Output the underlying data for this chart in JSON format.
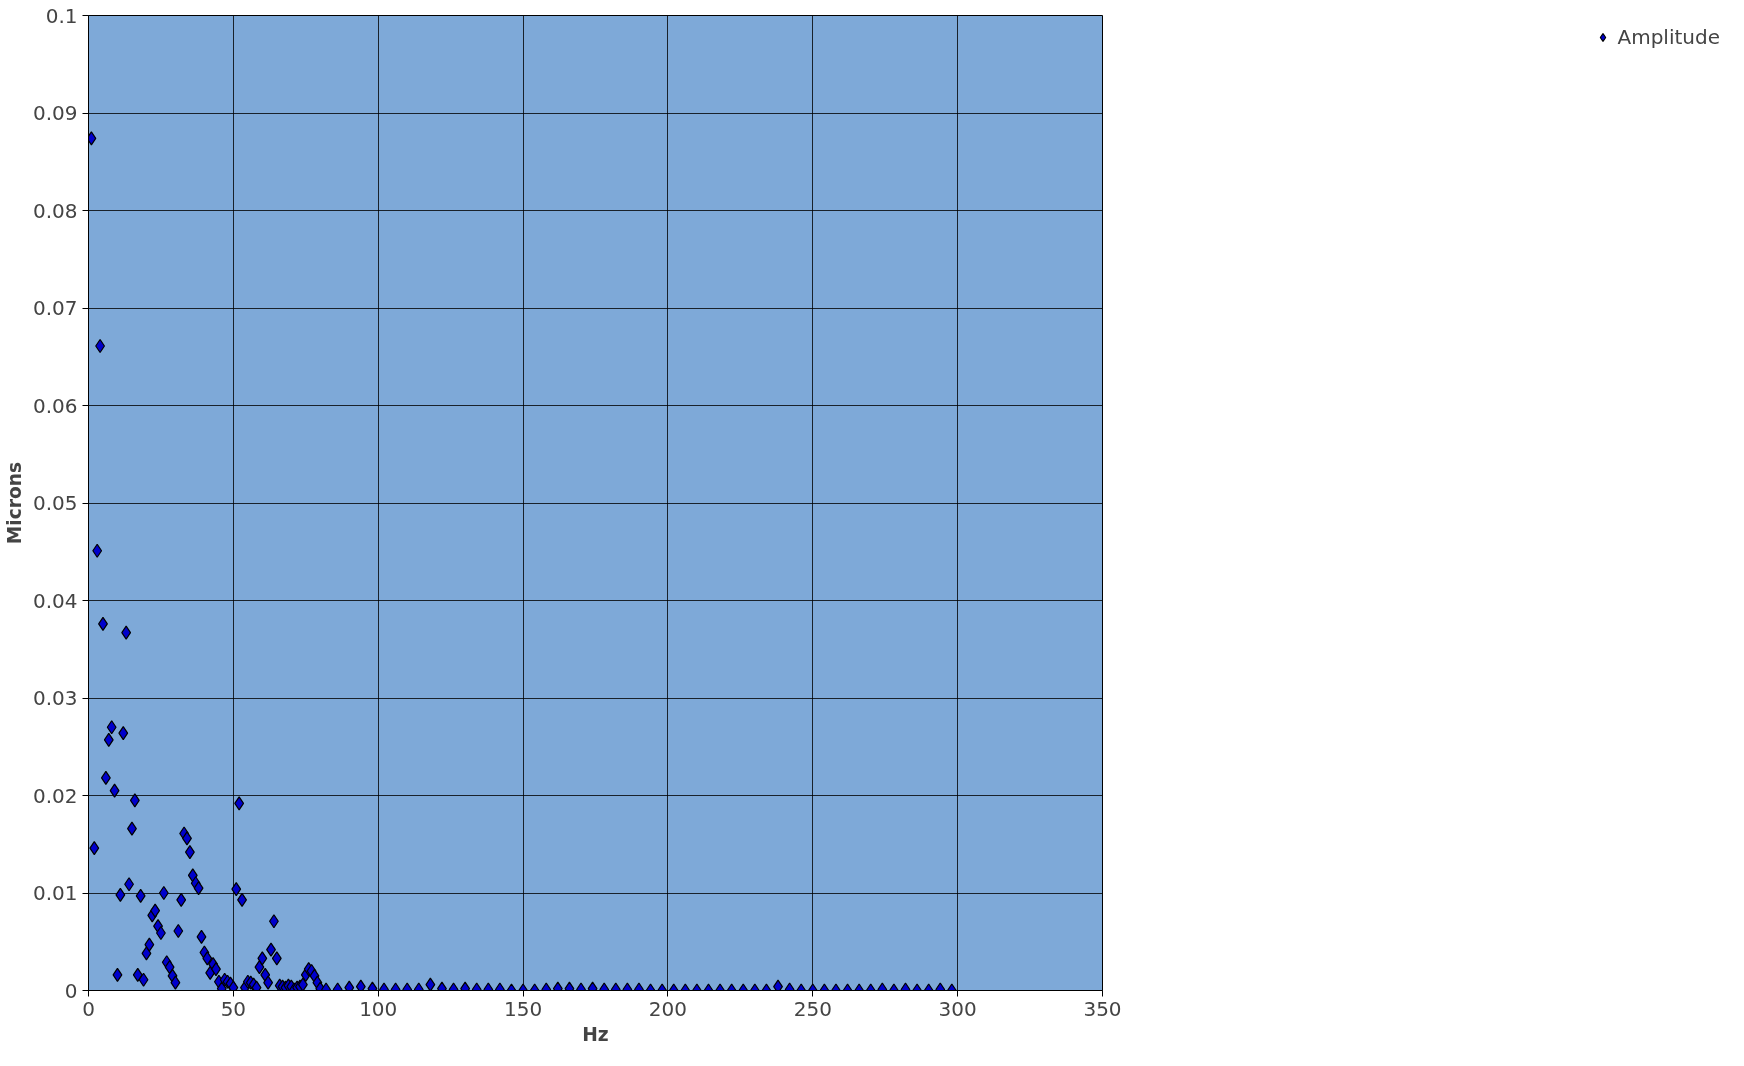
{
  "chart_data": {
    "type": "scatter",
    "xlabel": "Hz",
    "ylabel": "Microns",
    "xlim": [
      0,
      350
    ],
    "xticks": [
      0,
      50,
      100,
      150,
      200,
      250,
      300,
      350
    ],
    "ylim": [
      0,
      0.1
    ],
    "yticks": [
      0,
      0.01,
      0.02,
      0.03,
      0.04,
      0.05,
      0.06,
      0.07,
      0.08,
      0.09,
      0.1
    ],
    "grid": true,
    "legend": "right",
    "marker": "diamond",
    "series": [
      {
        "name": "Amplitude",
        "color": "#0000cc",
        "x": [
          1,
          2,
          3,
          4,
          5,
          6,
          7,
          8,
          9,
          10,
          11,
          12,
          13,
          14,
          15,
          16,
          17,
          18,
          19,
          20,
          21,
          22,
          23,
          24,
          25,
          26,
          27,
          28,
          29,
          30,
          31,
          32,
          33,
          34,
          35,
          36,
          37,
          38,
          39,
          40,
          41,
          42,
          43,
          44,
          45,
          46,
          47,
          48,
          49,
          50,
          51,
          52,
          53,
          54,
          55,
          56,
          57,
          58,
          59,
          60,
          61,
          62,
          63,
          64,
          65,
          66,
          67,
          68,
          69,
          70,
          71,
          72,
          73,
          74,
          75,
          76,
          77,
          78,
          79,
          80,
          82,
          86,
          90,
          94,
          98,
          102,
          106,
          110,
          114,
          118,
          122,
          126,
          130,
          134,
          138,
          142,
          146,
          150,
          154,
          158,
          162,
          166,
          170,
          174,
          178,
          182,
          186,
          190,
          194,
          198,
          202,
          206,
          210,
          214,
          218,
          222,
          226,
          230,
          234,
          238,
          242,
          246,
          250,
          254,
          258,
          262,
          266,
          270,
          274,
          278,
          282,
          286,
          290,
          294,
          298
        ],
        "values": [
          0.0874,
          0.0146,
          0.0451,
          0.0661,
          0.0376,
          0.0218,
          0.0257,
          0.027,
          0.0205,
          0.0016,
          0.0098,
          0.0264,
          0.0367,
          0.0109,
          0.0166,
          0.0195,
          0.0016,
          0.0097,
          0.0011,
          0.0038,
          0.0047,
          0.0077,
          0.0082,
          0.0066,
          0.0059,
          0.01,
          0.0029,
          0.0024,
          0.0015,
          0.0008,
          0.0061,
          0.0093,
          0.0161,
          0.0156,
          0.0142,
          0.0118,
          0.011,
          0.0105,
          0.0055,
          0.0039,
          0.0033,
          0.0018,
          0.0027,
          0.0022,
          0.0009,
          0.0002,
          0.0011,
          0.0009,
          0.0007,
          0.0003,
          0.0104,
          0.0192,
          0.0093,
          0.0003,
          0.0009,
          0.0008,
          0.0006,
          0.0003,
          0.0024,
          0.0033,
          0.0016,
          0.0008,
          0.0042,
          0.0071,
          0.0033,
          0.0005,
          0.0004,
          0.0003,
          0.0005,
          0.0004,
          0.0001,
          0.0003,
          0.0004,
          0.0006,
          0.0016,
          0.0022,
          0.002,
          0.0015,
          0.0008,
          0.0002,
          0.0001,
          0.0001,
          0.0003,
          0.0004,
          0.0002,
          0.0001,
          0.0001,
          0.0001,
          0.0001,
          0.0006,
          0.0002,
          0.0001,
          0.0002,
          0.0001,
          0.0001,
          0.0001,
          0,
          0,
          0,
          0.0001,
          0.0002,
          0.0002,
          0.0001,
          0.0002,
          0.0001,
          0.0001,
          0.0001,
          0.0001,
          0,
          0,
          0,
          0,
          0,
          0,
          0,
          0,
          0,
          0,
          0,
          0.0004,
          0.0001,
          0,
          0,
          0,
          0,
          0,
          0,
          0,
          0.0001,
          0,
          0.0001,
          0,
          0,
          0.0001,
          0
        ]
      }
    ]
  }
}
